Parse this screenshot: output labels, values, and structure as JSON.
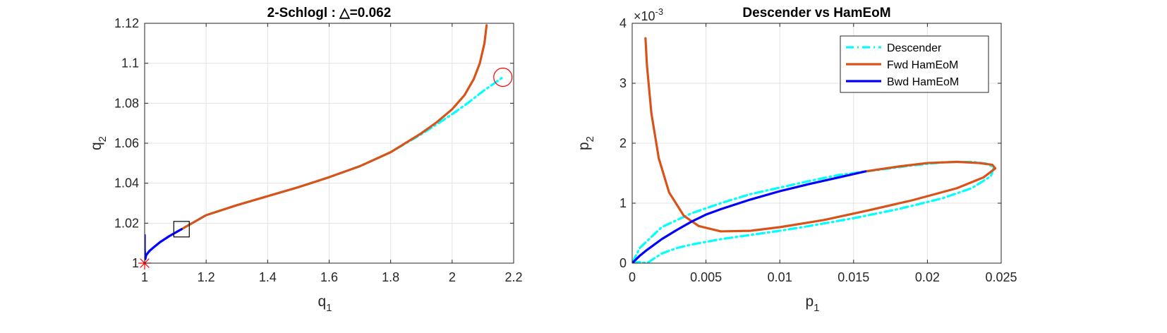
{
  "colors": {
    "descender": "#00ffff",
    "fwd": "#d95319",
    "bwd": "#0000ff",
    "marker_red": "#ff0000",
    "marker_black": "#000000"
  },
  "chart_data": [
    {
      "type": "line",
      "title": "2-Schlogl : △=0.062",
      "xlabel": "q",
      "xlabel_sub": "1",
      "ylabel": "q",
      "ylabel_sub": "2",
      "xlim": [
        1,
        2.2
      ],
      "ylim": [
        1,
        1.12
      ],
      "xticks": [
        "1",
        "1.2",
        "1.4",
        "1.6",
        "1.8",
        "2",
        "2.2"
      ],
      "xtick_values": [
        1,
        1.2,
        1.4,
        1.6,
        1.8,
        2,
        2.2
      ],
      "yticks": [
        "1",
        "1.02",
        "1.04",
        "1.06",
        "1.08",
        "1.1",
        "1.12"
      ],
      "ytick_values": [
        1,
        1.02,
        1.04,
        1.06,
        1.08,
        1.1,
        1.12
      ],
      "grid": true,
      "series": [
        {
          "key": "descender",
          "style": "dashdot",
          "x": [
            1.13,
            1.2,
            1.3,
            1.4,
            1.5,
            1.6,
            1.7,
            1.8,
            1.9,
            1.95,
            2.0,
            2.05,
            2.1,
            2.165
          ],
          "y": [
            1.018,
            1.024,
            1.029,
            1.0335,
            1.038,
            1.043,
            1.0485,
            1.0555,
            1.0645,
            1.0695,
            1.0745,
            1.08,
            1.086,
            1.093
          ]
        },
        {
          "key": "fwd",
          "style": "solid",
          "x": [
            1.12,
            1.2,
            1.3,
            1.4,
            1.5,
            1.6,
            1.7,
            1.8,
            1.9,
            1.95,
            2.0,
            2.04,
            2.07,
            2.09,
            2.105,
            2.112
          ],
          "y": [
            1.017,
            1.024,
            1.029,
            1.0335,
            1.038,
            1.043,
            1.0485,
            1.0555,
            1.065,
            1.0705,
            1.077,
            1.084,
            1.092,
            1.1,
            1.11,
            1.119
          ]
        },
        {
          "key": "bwd",
          "style": "solid",
          "x": [
            1.0,
            1.0,
            1.002,
            1.005,
            1.015,
            1.03,
            1.05,
            1.08,
            1.12
          ],
          "y": [
            1.014,
            1.007,
            1.002,
            1.004,
            1.006,
            1.008,
            1.0105,
            1.0135,
            1.017
          ]
        }
      ],
      "markers": [
        {
          "kind": "star",
          "x": 1.0,
          "y": 1.0,
          "color_key": "marker_red"
        },
        {
          "kind": "square",
          "x": 1.12,
          "y": 1.017,
          "color_key": "marker_black"
        },
        {
          "kind": "circle",
          "x": 2.165,
          "y": 1.093,
          "color_key": "marker_red"
        }
      ]
    },
    {
      "type": "line",
      "title": "Descender vs HamEoM",
      "xlabel": "p",
      "xlabel_sub": "1",
      "ylabel": "p",
      "ylabel_sub": "2",
      "xlim": [
        0,
        0.025
      ],
      "ylim": [
        0,
        0.004
      ],
      "xticks": [
        "0",
        "0.005",
        "0.01",
        "0.015",
        "0.02",
        "0.025"
      ],
      "xtick_values": [
        0,
        0.005,
        0.01,
        0.015,
        0.02,
        0.025
      ],
      "yticks": [
        "0",
        "1",
        "2",
        "3",
        "4"
      ],
      "ytick_values": [
        0,
        0.001,
        0.002,
        0.003,
        0.004
      ],
      "exponent_label": "×10",
      "exponent_value": "-3",
      "grid": true,
      "legend": {
        "placement": "top-right",
        "entries": [
          {
            "label": "Descender",
            "key": "descender"
          },
          {
            "label": "Fwd HamEoM",
            "key": "fwd"
          },
          {
            "label": "Bwd HamEoM",
            "key": "bwd"
          }
        ]
      },
      "series": [
        {
          "key": "descender",
          "style": "dashdot",
          "x": [
            0.0,
            0.0005,
            0.001,
            0.0015,
            0.002,
            0.003,
            0.004,
            0.006,
            0.008,
            0.01,
            0.012,
            0.015,
            0.018,
            0.021,
            0.023,
            0.0243,
            0.0245,
            0.024,
            0.023,
            0.021,
            0.019,
            0.0165,
            0.014,
            0.012,
            0.01,
            0.008,
            0.006,
            0.004,
            0.002,
            0.0005,
            0.0
          ],
          "y": [
            0.0,
            2e-05,
            0.0,
            8e-05,
            0.00016,
            0.00025,
            0.00031,
            0.0004,
            0.00047,
            0.00054,
            0.00062,
            0.00075,
            0.0009,
            0.00108,
            0.00125,
            0.00145,
            0.0016,
            0.00166,
            0.00169,
            0.00168,
            0.00163,
            0.00155,
            0.00147,
            0.00137,
            0.00126,
            0.00115,
            0.001,
            0.00083,
            0.0006,
            0.00025,
            0.0
          ]
        },
        {
          "key": "fwd",
          "style": "solid",
          "x": [
            0.0009,
            0.001,
            0.0013,
            0.0018,
            0.0025,
            0.0035,
            0.0045,
            0.006,
            0.008,
            0.01,
            0.013,
            0.016,
            0.019,
            0.022,
            0.0238,
            0.0246,
            0.0244,
            0.0235,
            0.022,
            0.02,
            0.018,
            0.0158
          ],
          "y": [
            0.00375,
            0.0033,
            0.0025,
            0.00175,
            0.00118,
            0.00079,
            0.00062,
            0.00053,
            0.00054,
            0.0006,
            0.00072,
            0.00088,
            0.00105,
            0.00125,
            0.00143,
            0.00158,
            0.00164,
            0.00167,
            0.00169,
            0.00167,
            0.00161,
            0.00153
          ]
        },
        {
          "key": "bwd",
          "style": "solid",
          "x": [
            0.0,
            0.0005,
            0.001,
            0.002,
            0.003,
            0.004,
            0.005,
            0.006,
            0.008,
            0.01,
            0.012,
            0.014,
            0.0158
          ],
          "y": [
            0.0,
            0.00012,
            0.00022,
            0.0004,
            0.00055,
            0.00069,
            0.00081,
            0.0009,
            0.00106,
            0.0012,
            0.00132,
            0.00143,
            0.00153
          ]
        }
      ]
    }
  ]
}
